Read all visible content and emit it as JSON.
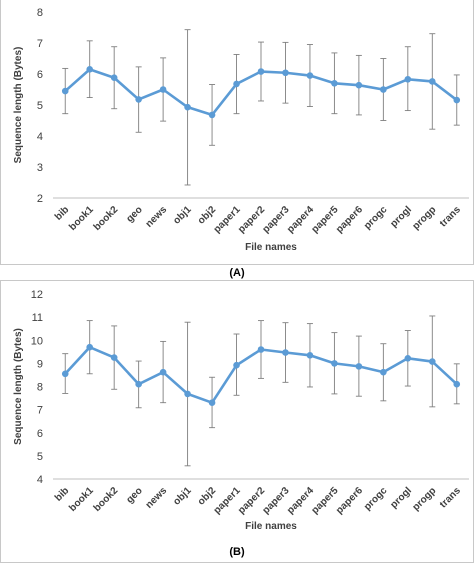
{
  "chart_data": [
    {
      "type": "line",
      "caption": "(A)",
      "xlabel": "File names",
      "ylabel": "Sequence length (Bytes)",
      "ylim": [
        2,
        8
      ],
      "yticks": [
        2,
        3,
        4,
        5,
        6,
        7,
        8
      ],
      "grid": false,
      "categories": [
        "bib",
        "book1",
        "book2",
        "geo",
        "news",
        "obj1",
        "obj2",
        "paper1",
        "paper2",
        "paper3",
        "paper4",
        "paper5",
        "paper6",
        "progc",
        "progl",
        "progp",
        "trans"
      ],
      "series": [
        {
          "color": "#5b9bd5",
          "values": [
            5.45,
            6.15,
            5.88,
            5.18,
            5.5,
            4.93,
            4.68,
            5.68,
            6.08,
            6.04,
            5.95,
            5.7,
            5.64,
            5.5,
            5.83,
            5.76,
            5.16
          ],
          "error_low": [
            4.72,
            5.24,
            4.88,
            4.12,
            4.48,
            2.42,
            3.7,
            4.72,
            5.13,
            5.06,
            4.95,
            4.72,
            4.68,
            4.5,
            4.82,
            4.22,
            4.35
          ],
          "error_high": [
            6.18,
            7.07,
            6.88,
            6.23,
            6.52,
            7.43,
            5.66,
            6.63,
            7.03,
            7.02,
            6.95,
            6.68,
            6.6,
            6.5,
            6.88,
            7.3,
            5.97
          ]
        }
      ]
    },
    {
      "type": "line",
      "caption": "(B)",
      "xlabel": "File names",
      "ylabel": "Sequence length (Bytes)",
      "ylim": [
        4,
        12
      ],
      "yticks": [
        4,
        5,
        6,
        7,
        8,
        9,
        10,
        11,
        12
      ],
      "grid": false,
      "categories": [
        "bib",
        "book1",
        "book2",
        "geo",
        "news",
        "obj1",
        "obj2",
        "paper1",
        "paper2",
        "paper3",
        "paper4",
        "paper5",
        "paper6",
        "progc",
        "progl",
        "progp",
        "trans"
      ],
      "series": [
        {
          "color": "#5b9bd5",
          "values": [
            8.55,
            9.7,
            9.25,
            8.1,
            8.62,
            7.68,
            7.3,
            8.92,
            9.6,
            9.47,
            9.35,
            9.0,
            8.87,
            8.62,
            9.22,
            9.08,
            8.1
          ],
          "error_low": [
            7.7,
            8.55,
            7.88,
            7.08,
            7.3,
            4.57,
            6.22,
            7.62,
            8.35,
            8.18,
            7.98,
            7.68,
            7.58,
            7.38,
            8.02,
            7.12,
            7.25
          ],
          "error_high": [
            9.42,
            10.85,
            10.62,
            9.1,
            9.95,
            10.78,
            8.4,
            10.27,
            10.85,
            10.76,
            10.72,
            10.33,
            10.18,
            9.85,
            10.42,
            11.05,
            8.98
          ]
        }
      ]
    }
  ]
}
